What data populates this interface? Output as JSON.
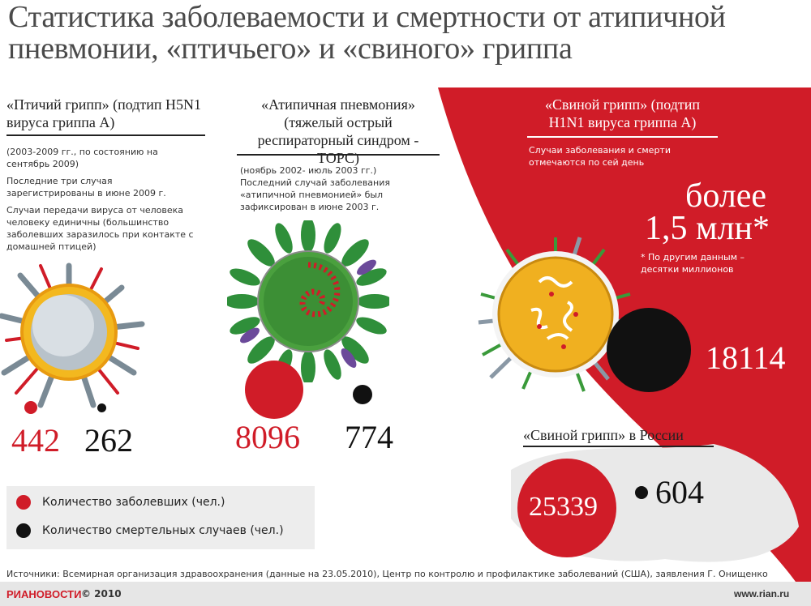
{
  "title": "Статистика заболеваемости и смертности от атипичной пневмонии, «птичьего» и «свиного» гриппа",
  "bird_flu": {
    "heading": "«Птичий грипп» (подтип H5N1 вируса гриппа A)",
    "period": "(2003-2009 гг., по состоянию на сентябрь 2009)",
    "note1": "Последние три случая зарегистрированы в июне 2009 г.",
    "note2": "Случаи передачи вируса от человека человеку единичны (большинство заболевших заразилось при контакте с домашней птицей)",
    "cases": "442",
    "deaths": "262"
  },
  "sars": {
    "heading": "«Атипичная пневмония» (тяжелый острый респираторный синдром - ТОРС)",
    "note": "(ноябрь 2002- июль 2003 гг.) Последний случай заболевания «атипичной пневмонией» был зафиксирован в июне 2003 г.",
    "cases": "8096",
    "deaths": "774"
  },
  "swine_flu": {
    "heading": "«Свиной грипп» (подтип H1N1 вируса гриппа A)",
    "note": "Случаи заболевания и смерти отмечаются по сей день",
    "cases_line1": "более",
    "cases_line2": "1,5 млн*",
    "footnote": "* По другим данным – десятки миллионов",
    "deaths": "18114"
  },
  "russia": {
    "heading": "«Свиной грипп» в России",
    "cases": "25339",
    "deaths": "604"
  },
  "legend": {
    "cases_label": "Количество заболевших (чел.)",
    "deaths_label": "Количество смертельных случаев (чел.)"
  },
  "footer": {
    "sources": "Источники: Всемирная организация здравоохранения (данные на 23.05.2010), Центр по контролю и профилактике заболеваний (США), заявления Г. Онищенко",
    "brand": "РИАНОВОСТИ",
    "copyright": "© 2010",
    "url": "www.rian.ru"
  },
  "colors": {
    "red": "#d01c28",
    "black": "#111111",
    "virus_green": "#3a9a3a",
    "virus_yellow": "#f0b020"
  }
}
